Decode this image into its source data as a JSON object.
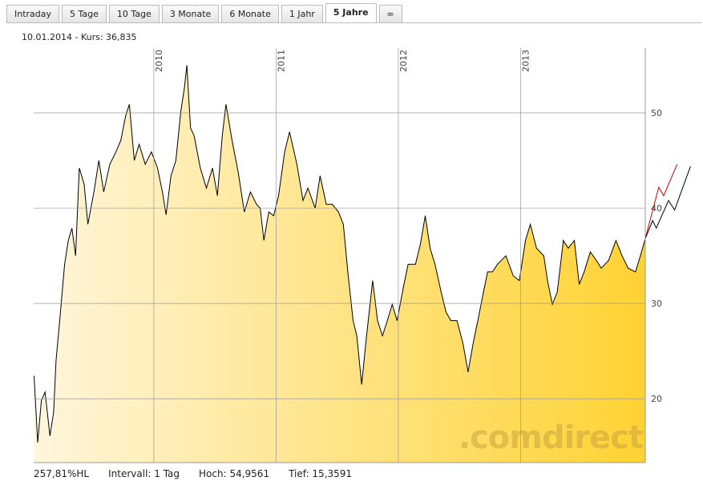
{
  "tabs": [
    "Intraday",
    "5 Tage",
    "10 Tage",
    "3 Monate",
    "6 Monate",
    "1 Jahr",
    "5 Jahre",
    "∞"
  ],
  "active_tab_index": 6,
  "header": "10.01.2014  - Kurs: 36,835",
  "footer": [
    "257,81%HL",
    "Intervall: 1 Tag",
    "Hoch: 54,9561",
    "Tief: 15,3591"
  ],
  "watermark": ".comdirect",
  "chart_data": {
    "type": "area",
    "xlim": [
      2009.017,
      2014.02
    ],
    "ylim": [
      13.3,
      56.8
    ],
    "xticks": [
      2010,
      2011,
      2012,
      2013
    ],
    "yticks": [
      20,
      30,
      40,
      50
    ],
    "grid": true,
    "fill": [
      "#fff6dc",
      "#ffd232"
    ],
    "series": [
      {
        "color": "#000000",
        "fill": true,
        "x": [
          2009.02,
          2009.05,
          2009.08,
          2009.11,
          2009.15,
          2009.18,
          2009.2,
          2009.23,
          2009.27,
          2009.3,
          2009.33,
          2009.36,
          2009.39,
          2009.43,
          2009.46,
          2009.51,
          2009.55,
          2009.59,
          2009.64,
          2009.69,
          2009.73,
          2009.77,
          2009.8,
          2009.84,
          2009.88,
          2009.93,
          2009.98,
          2010.03,
          2010.07,
          2010.1,
          2010.14,
          2010.18,
          2010.22,
          2010.25,
          2010.27,
          2010.3,
          2010.33,
          2010.38,
          2010.43,
          2010.48,
          2010.52,
          2010.56,
          2010.59,
          2010.64,
          2010.69,
          2010.74,
          2010.79,
          2010.84,
          2010.87,
          2010.9,
          2010.94,
          2010.98,
          2011.02,
          2011.07,
          2011.11,
          2011.17,
          2011.22,
          2011.26,
          2011.32,
          2011.36,
          2011.41,
          2011.46,
          2011.51,
          2011.55,
          2011.59,
          2011.63,
          2011.66,
          2011.7,
          2011.74,
          2011.79,
          2011.83,
          2011.87,
          2011.91,
          2011.95,
          2011.99,
          2012.04,
          2012.08,
          2012.14,
          2012.18,
          2012.22,
          2012.26,
          2012.3,
          2012.35,
          2012.39,
          2012.43,
          2012.48,
          2012.53,
          2012.57,
          2012.61,
          2012.65,
          2012.69,
          2012.73,
          2012.77,
          2012.81,
          2012.88,
          2012.94,
          2012.99,
          2013.04,
          2013.08,
          2013.13,
          2013.19,
          2013.22,
          2013.26,
          2013.3,
          2013.35,
          2013.39,
          2013.44,
          2013.48,
          2013.52,
          2013.57,
          2013.62,
          2013.66,
          2013.72,
          2013.78,
          2013.83,
          2013.88,
          2013.94,
          2013.98,
          2014.02
        ],
        "values": [
          22.4,
          15.4,
          19.8,
          20.7,
          16.1,
          18.6,
          24.0,
          28.2,
          34.1,
          36.6,
          37.9,
          35.0,
          44.2,
          42.5,
          38.3,
          41.7,
          45.0,
          41.7,
          44.6,
          45.9,
          47.1,
          49.7,
          50.9,
          45.0,
          46.7,
          44.6,
          45.9,
          44.2,
          41.7,
          39.3,
          43.4,
          45.0,
          50.1,
          52.6,
          55.0,
          48.4,
          47.6,
          44.2,
          42.1,
          44.2,
          41.3,
          47.6,
          50.9,
          47.1,
          43.8,
          39.6,
          41.7,
          40.4,
          40.0,
          36.6,
          39.6,
          39.2,
          41.3,
          45.9,
          48.0,
          44.6,
          40.8,
          42.1,
          40.0,
          43.4,
          40.4,
          40.4,
          39.6,
          38.3,
          32.9,
          28.2,
          26.6,
          21.5,
          26.6,
          32.4,
          28.2,
          26.6,
          28.2,
          29.9,
          28.2,
          31.6,
          34.1,
          34.1,
          36.2,
          39.2,
          35.8,
          34.1,
          31.2,
          29.1,
          28.2,
          28.2,
          25.7,
          22.8,
          25.7,
          28.2,
          30.8,
          33.3,
          33.3,
          34.1,
          35.0,
          32.9,
          32.4,
          36.6,
          38.3,
          35.8,
          35.0,
          32.4,
          29.9,
          31.2,
          36.6,
          35.8,
          36.6,
          32.0,
          33.3,
          35.4,
          34.5,
          33.7,
          34.5,
          36.6,
          35.0,
          33.7,
          33.3,
          35.0,
          36.8
        ]
      },
      {
        "color": "#cc0000",
        "x": [
          2014.02,
          2014.13,
          2014.17,
          2014.28
        ],
        "values": [
          36.8,
          42.2,
          41.3,
          44.6
        ]
      },
      {
        "color": "#000000",
        "x": [
          2014.02,
          2014.08,
          2014.11,
          2014.21,
          2014.26,
          2014.39
        ],
        "values": [
          36.8,
          38.7,
          37.9,
          40.8,
          39.8,
          44.4
        ]
      }
    ]
  }
}
